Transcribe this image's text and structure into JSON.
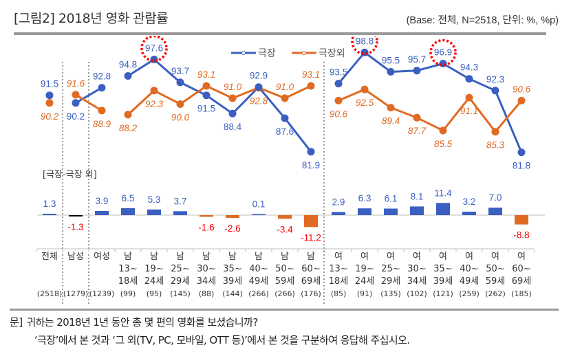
{
  "header": {
    "title": "[그림2]  2018년 영화 관람률",
    "base_note": "(Base: 전체, N=2518, 단위: %, %p)"
  },
  "colors": {
    "theater": "#3A5FC1",
    "non_theater": "#E06A22",
    "diff_negative_label": "#FF0000",
    "highlight_circle": "#FF0000",
    "male_diff_bar": "#000000"
  },
  "chart_data": {
    "type": "line",
    "title": "2018년 영화 관람률",
    "legend": [
      "극장",
      "극장외"
    ],
    "legend_position": "top-center",
    "categories": [
      {
        "group": "전체",
        "line1": "",
        "line2": "",
        "n": "(2518)"
      },
      {
        "group": "남성",
        "line1": "",
        "line2": "",
        "n": "(1279)"
      },
      {
        "group": "여성",
        "line1": "",
        "line2": "",
        "n": "(1239)"
      },
      {
        "group": "남",
        "line1": "13~",
        "line2": "18세",
        "n": "(99)"
      },
      {
        "group": "남",
        "line1": "19~",
        "line2": "24세",
        "n": "(95)"
      },
      {
        "group": "남",
        "line1": "25~",
        "line2": "29세",
        "n": "(145)"
      },
      {
        "group": "남",
        "line1": "30~",
        "line2": "34세",
        "n": "(88)"
      },
      {
        "group": "남",
        "line1": "35~",
        "line2": "39세",
        "n": "(144)"
      },
      {
        "group": "남",
        "line1": "40~",
        "line2": "49세",
        "n": "(266)"
      },
      {
        "group": "남",
        "line1": "50~",
        "line2": "59세",
        "n": "(266)"
      },
      {
        "group": "남",
        "line1": "60~",
        "line2": "69세",
        "n": "(176)"
      },
      {
        "group": "여",
        "line1": "13~",
        "line2": "18세",
        "n": "(85)"
      },
      {
        "group": "여",
        "line1": "19~",
        "line2": "24세",
        "n": "(91)"
      },
      {
        "group": "여",
        "line1": "25~",
        "line2": "29세",
        "n": "(135)"
      },
      {
        "group": "여",
        "line1": "30~",
        "line2": "34세",
        "n": "(102)"
      },
      {
        "group": "여",
        "line1": "35~",
        "line2": "39세",
        "n": "(121)"
      },
      {
        "group": "여",
        "line1": "40~",
        "line2": "49세",
        "n": "(259)"
      },
      {
        "group": "여",
        "line1": "50~",
        "line2": "59세",
        "n": "(262)"
      },
      {
        "group": "여",
        "line1": "60~",
        "line2": "69세",
        "n": "(185)"
      }
    ],
    "line_segments": [
      [
        0,
        0
      ],
      [
        1,
        2
      ],
      [
        3,
        10
      ],
      [
        11,
        18
      ]
    ],
    "series": [
      {
        "name": "극장",
        "values": [
          91.5,
          90.2,
          92.8,
          94.8,
          97.6,
          93.7,
          91.5,
          88.4,
          92.9,
          87.6,
          81.9,
          93.5,
          98.8,
          95.5,
          95.7,
          96.9,
          94.3,
          92.3,
          81.8
        ]
      },
      {
        "name": "극장외",
        "values": [
          90.2,
          91.6,
          88.9,
          88.2,
          92.3,
          90.0,
          93.1,
          91.0,
          92.8,
          91.0,
          93.1,
          90.6,
          92.5,
          89.4,
          87.7,
          85.5,
          91.1,
          85.3,
          90.6
        ]
      }
    ],
    "highlighted_indices": [
      4,
      12,
      15
    ],
    "difference": {
      "label": "[극장-극장 외]",
      "values": [
        1.3,
        -1.3,
        3.9,
        6.5,
        5.3,
        3.7,
        -1.6,
        -2.6,
        0.1,
        -3.4,
        -11.2,
        2.9,
        6.3,
        6.1,
        8.1,
        11.4,
        3.2,
        7.0,
        -8.8
      ]
    },
    "ylim_lines": [
      80,
      100
    ],
    "xlabel": "",
    "ylabel": "",
    "grid": false
  },
  "footer": {
    "question_marker": "문]",
    "question_line1": "귀하는 2018년 1년 동안 총 몇 편의 영화를 보셨습니까?",
    "question_line2": "‘극장’에서 본 것과 ‘그 외(TV, PC, 모바일, OTT 등)’에서 본 것을 구분하여 응답해 주십시오."
  }
}
